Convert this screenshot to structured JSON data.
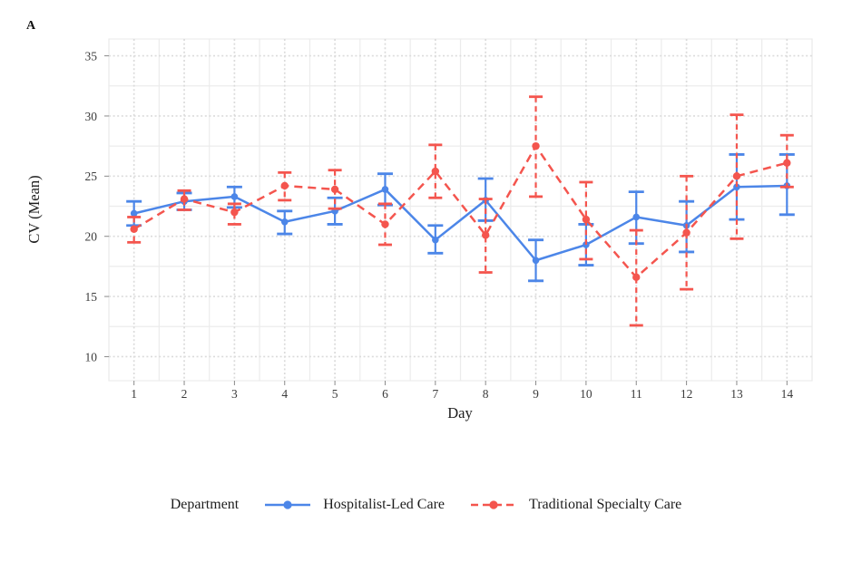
{
  "panel_label": "A",
  "colors": {
    "grid_major": "#DBDBDB",
    "grid_minor": "#ECECEC",
    "tick_text": "#3C3C3C",
    "axis_tick": "#8A8A8A",
    "hospitalist_blue": "#4C86E8",
    "traditional_red": "#F4554E"
  },
  "chart_data": {
    "type": "line",
    "title": "",
    "xlabel": "Day",
    "ylabel": "CV (Mean)",
    "legend_title": "Department",
    "legend_position": "bottom",
    "grid": true,
    "x": [
      1,
      2,
      3,
      4,
      5,
      6,
      7,
      8,
      9,
      10,
      11,
      12,
      13,
      14
    ],
    "yticks": [
      10,
      15,
      20,
      25,
      30,
      35
    ],
    "yticks_minor": [
      12.5,
      17.5,
      22.5,
      27.5,
      32.5
    ],
    "ylim": [
      8,
      36.4
    ],
    "series": [
      {
        "name": "Hospitalist-Led Care",
        "style": "solid",
        "color": "#4C86E8",
        "values": [
          21.9,
          22.9,
          23.3,
          21.2,
          22.1,
          23.9,
          19.7,
          23.0,
          18.0,
          19.3,
          21.6,
          20.9,
          24.1,
          24.2
        ],
        "err_low": [
          20.9,
          22.2,
          22.4,
          20.2,
          21.0,
          22.6,
          18.6,
          21.3,
          16.3,
          17.6,
          19.4,
          18.7,
          21.4,
          21.8
        ],
        "err_high": [
          22.9,
          23.6,
          24.1,
          22.1,
          23.2,
          25.2,
          20.9,
          24.8,
          19.7,
          21.0,
          23.7,
          22.9,
          26.8,
          26.8
        ]
      },
      {
        "name": "Traditional Specialty Care",
        "style": "dashed",
        "color": "#F4554E",
        "values": [
          20.6,
          23.1,
          22.0,
          24.2,
          23.9,
          21.0,
          25.4,
          20.1,
          27.5,
          21.4,
          16.6,
          20.3,
          25.0,
          26.1
        ],
        "err_low": [
          19.5,
          22.2,
          21.0,
          23.0,
          22.3,
          19.3,
          23.2,
          17.0,
          23.3,
          18.1,
          12.6,
          15.6,
          19.8,
          24.1
        ],
        "err_high": [
          21.6,
          23.8,
          22.7,
          25.3,
          25.5,
          22.7,
          27.6,
          23.1,
          31.6,
          24.5,
          20.5,
          25.0,
          30.1,
          28.4
        ]
      }
    ]
  }
}
